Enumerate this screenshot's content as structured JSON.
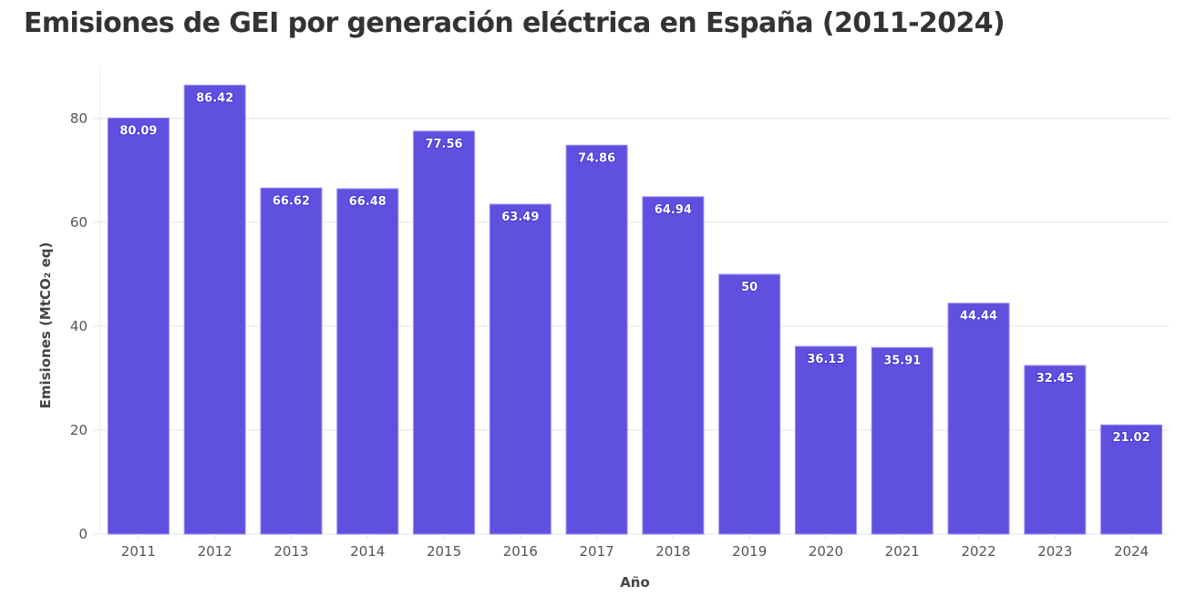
{
  "chart_data": {
    "type": "bar",
    "title": "Emisiones de GEI por generación eléctrica en España (2011-2024)",
    "xlabel": "Año",
    "ylabel": "Emisiones (MtCO₂ eq)",
    "categories": [
      "2011",
      "2012",
      "2013",
      "2014",
      "2015",
      "2016",
      "2017",
      "2018",
      "2019",
      "2020",
      "2021",
      "2022",
      "2023",
      "2024"
    ],
    "values": [
      80.09,
      86.42,
      66.62,
      66.48,
      77.56,
      63.49,
      74.86,
      64.94,
      50,
      36.13,
      35.91,
      44.44,
      32.45,
      21.02
    ],
    "data_labels": [
      "80.09",
      "86.42",
      "66.62",
      "66.48",
      "77.56",
      "63.49",
      "74.86",
      "64.94",
      "50",
      "36.13",
      "35.91",
      "44.44",
      "32.45",
      "21.02"
    ],
    "yticks": [
      0,
      20,
      40,
      60,
      80
    ],
    "ylim": [
      0,
      90
    ],
    "grid": true,
    "legend": "none",
    "bar_color": "#6050e0"
  }
}
